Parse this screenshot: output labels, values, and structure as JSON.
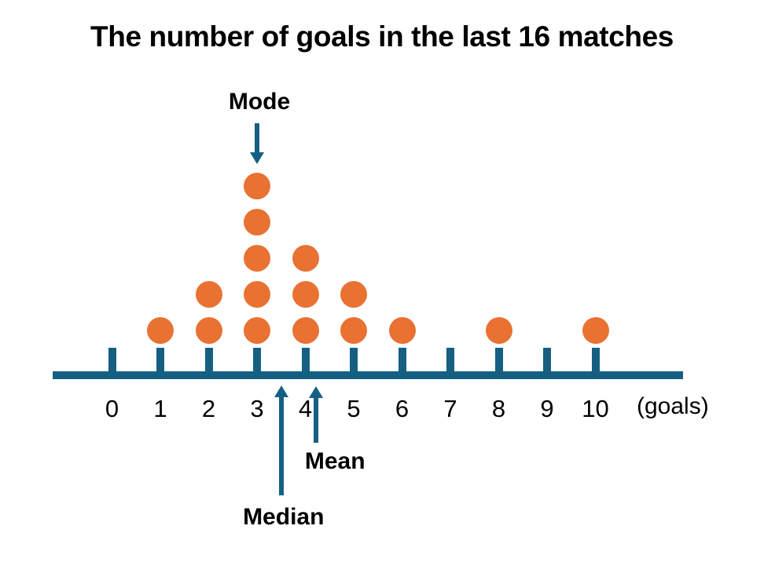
{
  "chart_data": {
    "type": "scatter",
    "subtype": "dot-plot",
    "title": "The number of goals in the last 16 matches",
    "xlabel": "(goals)",
    "ylabel": "",
    "x_values": [
      0,
      1,
      2,
      3,
      4,
      5,
      6,
      7,
      8,
      9,
      10
    ],
    "x_tick_labels": [
      "0",
      "1",
      "2",
      "3",
      "4",
      "5",
      "6",
      "7",
      "8",
      "9",
      "10"
    ],
    "counts": [
      0,
      1,
      2,
      5,
      3,
      2,
      1,
      0,
      1,
      0,
      1
    ],
    "total_observations": 16,
    "statistics": {
      "mode": 3,
      "median": 3.5,
      "mean": 4.125
    },
    "annotations": [
      {
        "label": "Mode",
        "x": 3,
        "direction": "down"
      },
      {
        "label": "Median",
        "x": 3.5,
        "direction": "up"
      },
      {
        "label": "Mean",
        "x": 4.125,
        "direction": "up"
      }
    ],
    "colors": {
      "dot": "#E97132",
      "axis": "#156082",
      "text": "#000000"
    },
    "grid": false,
    "legend": false,
    "xlim": [
      0,
      10
    ]
  },
  "labels": {
    "mode": "Mode",
    "median": "Median",
    "mean": "Mean",
    "unit": "(goals)"
  }
}
